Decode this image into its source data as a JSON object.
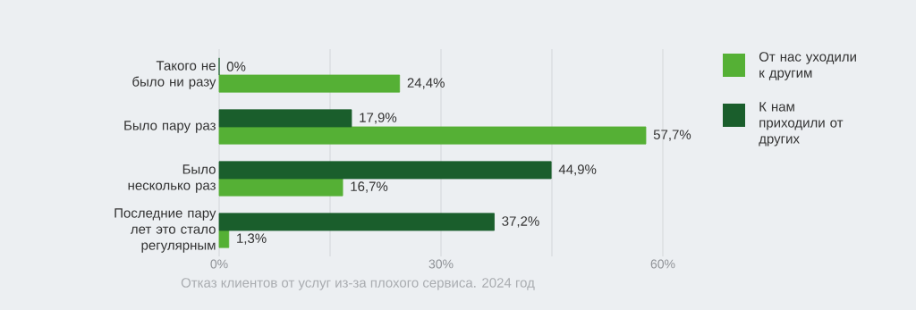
{
  "chart_data": {
    "type": "bar",
    "orientation": "horizontal",
    "categories": [
      "Такого не было ни разу",
      "Было пару раз",
      "Было несколько раз",
      "Последние пару лет это стало регулярным"
    ],
    "series": [
      {
        "name": "От нас уходили к другим",
        "color": "#55b035",
        "values": [
          24.4,
          57.7,
          16.7,
          1.3
        ],
        "value_labels": [
          "24,4%",
          "57,7%",
          "16,7%",
          "1,3%"
        ]
      },
      {
        "name": "К нам приходили от других",
        "color": "#1a5e2c",
        "values": [
          0,
          17.9,
          44.9,
          37.2
        ],
        "value_labels": [
          "0%",
          "17,9%",
          "44,9%",
          "37,2%"
        ]
      }
    ],
    "xlim": [
      0,
      60
    ],
    "xticks": [
      {
        "value": 0,
        "label": "0%"
      },
      {
        "value": 15,
        "label": null
      },
      {
        "value": 30,
        "label": "30%"
      },
      {
        "value": 45,
        "label": null
      },
      {
        "value": 60,
        "label": "60%"
      }
    ],
    "grid": "x",
    "legend": "right",
    "annotations": [
      "Отказ клиентов от услуг из-за плохого сервиса. 2024 год"
    ]
  }
}
